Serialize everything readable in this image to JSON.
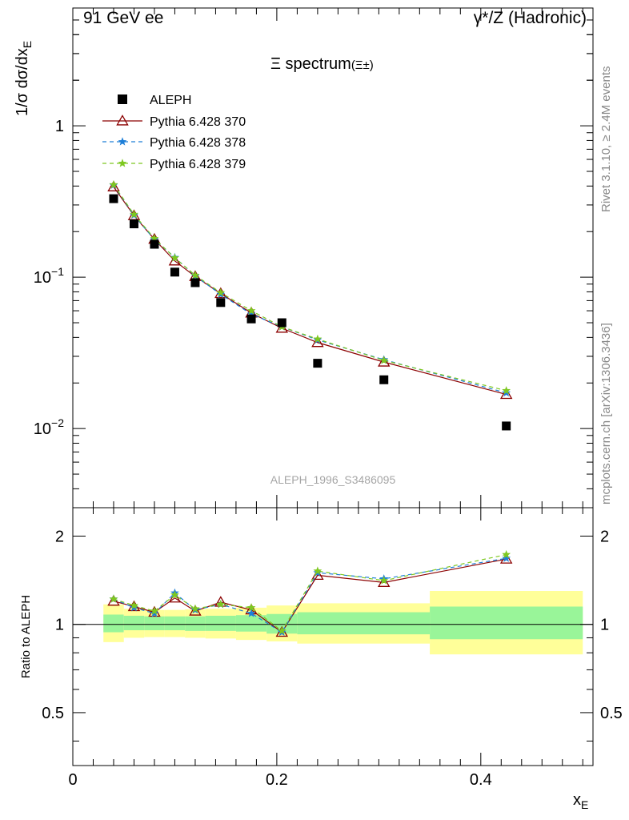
{
  "header": {
    "left": "91 GeV ee",
    "right": "γ*/Z (Hadronic)"
  },
  "title": {
    "main": "Ξ spectrum",
    "sub": "(Ξ±)"
  },
  "side_texts": {
    "rivet": "Rivet 3.1.10, ≥ 2.4M events",
    "mcplots": "mcplots.cern.ch [arXiv:1306.3436]"
  },
  "watermark": "ALEPH_1996_S3486095",
  "chart_data": [
    {
      "type": "scatter",
      "panel": "main",
      "ylabel": "1/σ dσ/dx_E",
      "yscale": "log",
      "ylim": [
        0.003,
        6.0
      ],
      "xlim": [
        0,
        0.51
      ],
      "ytick_labels": [
        "1",
        "10^-1",
        "10^-2"
      ],
      "ytick_values": [
        1,
        0.1,
        0.01
      ],
      "legend_position": "top-left",
      "series": [
        {
          "name": "ALEPH",
          "style": "data",
          "color": "#000000",
          "marker": "filled-square",
          "x": [
            0.04,
            0.06,
            0.08,
            0.1,
            0.12,
            0.145,
            0.175,
            0.205,
            0.24,
            0.305,
            0.425
          ],
          "y": [
            0.33,
            0.225,
            0.165,
            0.108,
            0.092,
            0.068,
            0.053,
            0.05,
            0.027,
            0.021,
            0.0104
          ]
        },
        {
          "name": "Pythia 6.428 370",
          "style": "solid",
          "color": "#8b0000",
          "marker": "open-triangle",
          "x": [
            0.04,
            0.06,
            0.08,
            0.1,
            0.12,
            0.145,
            0.175,
            0.205,
            0.24,
            0.305,
            0.425
          ],
          "y": [
            0.395,
            0.255,
            0.178,
            0.128,
            0.101,
            0.078,
            0.058,
            0.046,
            0.037,
            0.0275,
            0.0168
          ]
        },
        {
          "name": "Pythia 6.428 378",
          "style": "dashed",
          "color": "#1e7fd8",
          "marker": "star",
          "x": [
            0.04,
            0.06,
            0.08,
            0.1,
            0.12,
            0.145,
            0.175,
            0.205,
            0.24,
            0.305,
            0.425
          ],
          "y": [
            0.405,
            0.257,
            0.177,
            0.135,
            0.102,
            0.077,
            0.057,
            0.047,
            0.0385,
            0.0285,
            0.0172
          ]
        },
        {
          "name": "Pythia 6.428 379",
          "style": "dashed",
          "color": "#7ec820",
          "marker": "star",
          "x": [
            0.04,
            0.06,
            0.08,
            0.1,
            0.12,
            0.145,
            0.175,
            0.205,
            0.24,
            0.305,
            0.425
          ],
          "y": [
            0.408,
            0.26,
            0.18,
            0.134,
            0.103,
            0.079,
            0.06,
            0.047,
            0.039,
            0.0282,
            0.0178
          ]
        }
      ]
    },
    {
      "type": "line",
      "panel": "ratio",
      "ylabel": "Ratio to ALEPH",
      "xlabel": "x_E",
      "xlim": [
        0,
        0.51
      ],
      "ylim": [
        0.33,
        2.5
      ],
      "ytick_labels": [
        "0.5",
        "1",
        "2"
      ],
      "ytick_values": [
        0.5,
        1,
        2
      ],
      "xtick_labels": [
        "0",
        "0.2",
        "0.4"
      ],
      "xtick_values": [
        0,
        0.2,
        0.4
      ],
      "bands": [
        {
          "x0": 0.03,
          "x1": 0.05,
          "inner": [
            0.94,
            1.08
          ],
          "outer": [
            0.87,
            1.17
          ]
        },
        {
          "x0": 0.05,
          "x1": 0.07,
          "inner": [
            0.955,
            1.07
          ],
          "outer": [
            0.9,
            1.13
          ]
        },
        {
          "x0": 0.07,
          "x1": 0.09,
          "inner": [
            0.955,
            1.065
          ],
          "outer": [
            0.905,
            1.12
          ]
        },
        {
          "x0": 0.09,
          "x1": 0.11,
          "inner": [
            0.955,
            1.065
          ],
          "outer": [
            0.905,
            1.12
          ]
        },
        {
          "x0": 0.11,
          "x1": 0.13,
          "inner": [
            0.95,
            1.065
          ],
          "outer": [
            0.9,
            1.125
          ]
        },
        {
          "x0": 0.13,
          "x1": 0.16,
          "inner": [
            0.95,
            1.07
          ],
          "outer": [
            0.895,
            1.13
          ]
        },
        {
          "x0": 0.16,
          "x1": 0.19,
          "inner": [
            0.945,
            1.075
          ],
          "outer": [
            0.885,
            1.14
          ]
        },
        {
          "x0": 0.19,
          "x1": 0.22,
          "inner": [
            0.93,
            1.085
          ],
          "outer": [
            0.875,
            1.16
          ]
        },
        {
          "x0": 0.22,
          "x1": 0.35,
          "inner": [
            0.925,
            1.1
          ],
          "outer": [
            0.86,
            1.18
          ]
        },
        {
          "x0": 0.35,
          "x1": 0.5,
          "inner": [
            0.89,
            1.15
          ],
          "outer": [
            0.79,
            1.3
          ]
        }
      ],
      "inner_band_color": "#99f599",
      "outer_band_color": "#ffff99",
      "reference": 1,
      "series": [
        {
          "name": "Pythia 6.428 370",
          "color": "#8b0000",
          "style": "solid",
          "x": [
            0.04,
            0.06,
            0.08,
            0.1,
            0.12,
            0.145,
            0.175,
            0.205,
            0.24,
            0.305,
            0.425
          ],
          "y": [
            1.2,
            1.15,
            1.1,
            1.23,
            1.11,
            1.19,
            1.12,
            0.94,
            1.47,
            1.39,
            1.67
          ]
        },
        {
          "name": "Pythia 6.428 378",
          "color": "#1e7fd8",
          "style": "dashed",
          "x": [
            0.04,
            0.06,
            0.08,
            0.1,
            0.12,
            0.145,
            0.175,
            0.205,
            0.24,
            0.305,
            0.425
          ],
          "y": [
            1.22,
            1.14,
            1.09,
            1.28,
            1.12,
            1.17,
            1.09,
            0.94,
            1.5,
            1.43,
            1.68
          ]
        },
        {
          "name": "Pythia 6.428 379",
          "color": "#7ec820",
          "style": "dashed",
          "x": [
            0.04,
            0.06,
            0.08,
            0.1,
            0.12,
            0.145,
            0.175,
            0.205,
            0.24,
            0.305,
            0.425
          ],
          "y": [
            1.22,
            1.16,
            1.11,
            1.26,
            1.13,
            1.17,
            1.14,
            0.95,
            1.52,
            1.41,
            1.73
          ]
        }
      ]
    }
  ]
}
